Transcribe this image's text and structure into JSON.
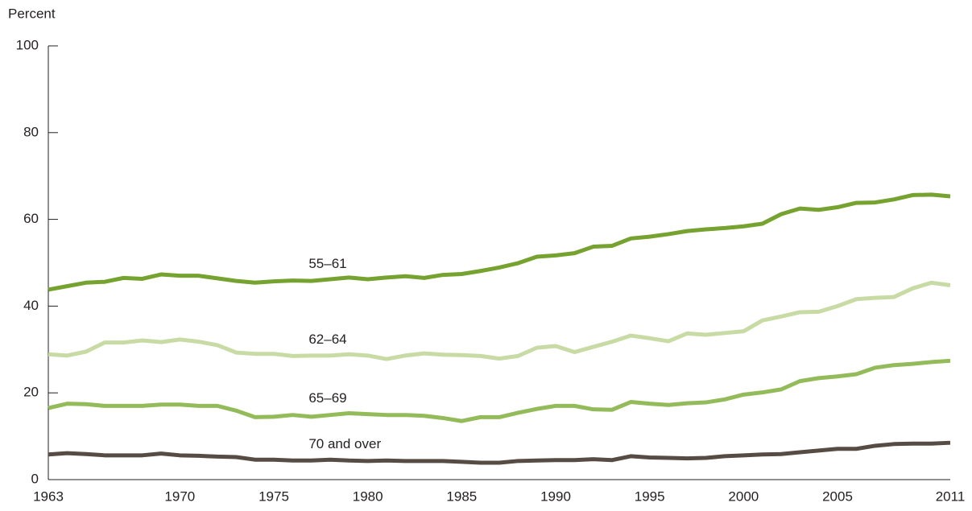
{
  "chart_data": {
    "type": "line",
    "y_label": "Percent",
    "x": [
      1963,
      1964,
      1965,
      1966,
      1967,
      1968,
      1969,
      1970,
      1971,
      1972,
      1973,
      1974,
      1975,
      1976,
      1977,
      1978,
      1979,
      1980,
      1981,
      1982,
      1983,
      1984,
      1985,
      1986,
      1987,
      1988,
      1989,
      1990,
      1991,
      1992,
      1993,
      1994,
      1995,
      1996,
      1997,
      1998,
      1999,
      2000,
      2001,
      2002,
      2003,
      2004,
      2005,
      2006,
      2007,
      2008,
      2009,
      2010,
      2011
    ],
    "xlim": [
      1963,
      2011
    ],
    "xticks": [
      1963,
      1970,
      1975,
      1980,
      1985,
      1990,
      1995,
      2000,
      2005,
      2011
    ],
    "ylim": [
      0,
      100
    ],
    "yticks": [
      0,
      20,
      40,
      60,
      80,
      100
    ],
    "series": [
      {
        "name": "55–61",
        "color": "#76a22f",
        "values": [
          43.8,
          44.6,
          45.4,
          45.6,
          46.5,
          46.3,
          47.3,
          47.0,
          47.0,
          46.4,
          45.8,
          45.4,
          45.7,
          45.9,
          45.8,
          46.2,
          46.6,
          46.2,
          46.6,
          46.9,
          46.5,
          47.2,
          47.4,
          48.1,
          48.9,
          49.9,
          51.4,
          51.7,
          52.2,
          53.7,
          53.9,
          55.6,
          56.0,
          56.6,
          57.3,
          57.7,
          58.0,
          58.4,
          59.0,
          61.2,
          62.5,
          62.2,
          62.8,
          63.8,
          63.9,
          64.6,
          65.6,
          65.7,
          65.3
        ]
      },
      {
        "name": "62–64",
        "color": "#c9dba4",
        "values": [
          28.9,
          28.6,
          29.5,
          31.6,
          31.6,
          32.1,
          31.7,
          32.3,
          31.8,
          31.0,
          29.3,
          29.0,
          29.0,
          28.5,
          28.6,
          28.6,
          28.9,
          28.6,
          27.8,
          28.6,
          29.1,
          28.8,
          28.7,
          28.5,
          27.9,
          28.5,
          30.4,
          30.8,
          29.4,
          30.6,
          31.8,
          33.2,
          32.6,
          31.9,
          33.7,
          33.4,
          33.8,
          34.2,
          36.7,
          37.6,
          38.6,
          38.7,
          40.0,
          41.6,
          41.9,
          42.1,
          44.1,
          45.4,
          44.8
        ]
      },
      {
        "name": "65–69",
        "color": "#93bb5a",
        "values": [
          16.5,
          17.5,
          17.4,
          17.0,
          17.0,
          17.0,
          17.3,
          17.3,
          17.0,
          17.0,
          15.9,
          14.4,
          14.5,
          14.9,
          14.5,
          14.9,
          15.3,
          15.1,
          14.9,
          14.9,
          14.7,
          14.2,
          13.5,
          14.4,
          14.4,
          15.4,
          16.3,
          17.0,
          17.0,
          16.2,
          16.1,
          17.9,
          17.5,
          17.2,
          17.6,
          17.8,
          18.5,
          19.6,
          20.1,
          20.8,
          22.7,
          23.4,
          23.8,
          24.3,
          25.8,
          26.4,
          26.7,
          27.1,
          27.4
        ]
      },
      {
        "name": "70 and over",
        "color": "#574c43",
        "values": [
          5.8,
          6.1,
          5.9,
          5.6,
          5.6,
          5.6,
          6.0,
          5.6,
          5.5,
          5.3,
          5.2,
          4.6,
          4.6,
          4.4,
          4.4,
          4.6,
          4.4,
          4.3,
          4.4,
          4.3,
          4.3,
          4.3,
          4.1,
          3.9,
          3.9,
          4.3,
          4.4,
          4.5,
          4.5,
          4.7,
          4.5,
          5.4,
          5.1,
          5.0,
          4.9,
          5.0,
          5.4,
          5.6,
          5.8,
          5.9,
          6.3,
          6.7,
          7.1,
          7.1,
          7.8,
          8.2,
          8.3,
          8.3,
          8.5
        ]
      }
    ]
  }
}
